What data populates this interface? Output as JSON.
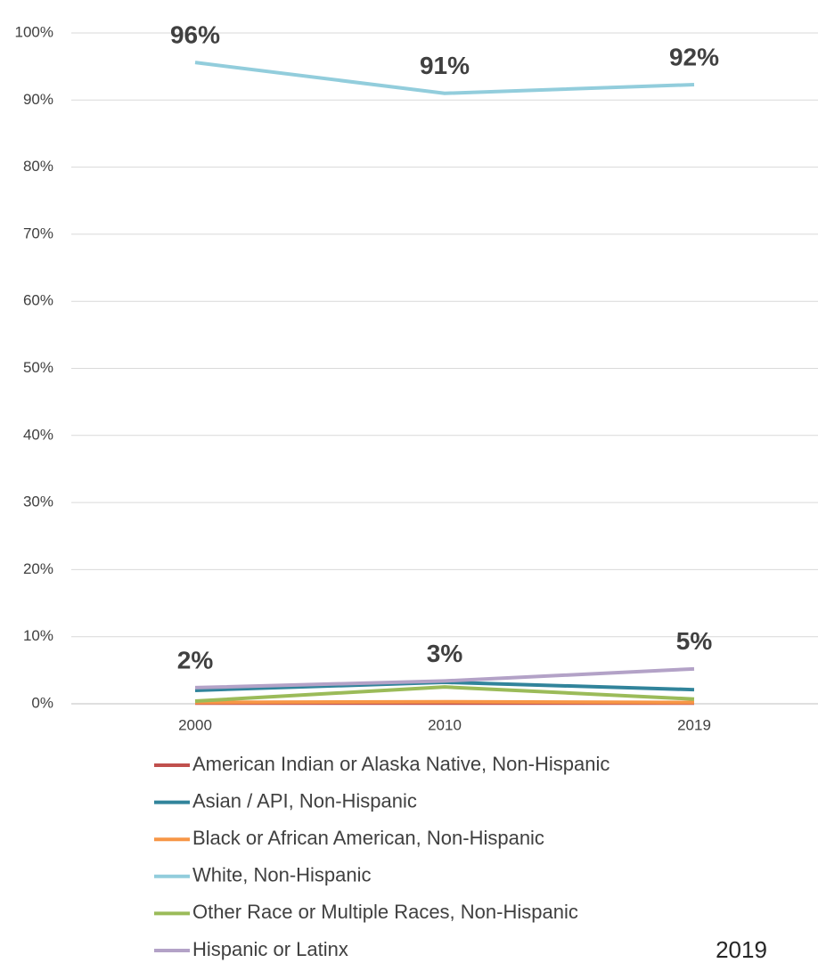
{
  "chart_data": {
    "type": "line",
    "x": [
      "2000",
      "2010",
      "2019"
    ],
    "ylim": [
      0,
      100
    ],
    "yticks": [
      {
        "value": 0,
        "label": "0%"
      },
      {
        "value": 10,
        "label": "10%"
      },
      {
        "value": 20,
        "label": "20%"
      },
      {
        "value": 30,
        "label": "30%"
      },
      {
        "value": 40,
        "label": "40%"
      },
      {
        "value": 50,
        "label": "50%"
      },
      {
        "value": 60,
        "label": "60%"
      },
      {
        "value": 70,
        "label": "70%"
      },
      {
        "value": 80,
        "label": "80%"
      },
      {
        "value": 90,
        "label": "90%"
      },
      {
        "value": 100,
        "label": "100%"
      }
    ],
    "grid": true,
    "legend": "bottom",
    "annotation": "2019",
    "series": [
      {
        "name": "American Indian or Alaska Native, Non-Hispanic",
        "color": "#c0504d",
        "values": [
          0.1,
          0.1,
          0.1
        ]
      },
      {
        "name": "Asian / API, Non-Hispanic",
        "color": "#31849b",
        "values": [
          2.0,
          3.2,
          2.1
        ]
      },
      {
        "name": "Black or African American, Non-Hispanic",
        "color": "#f79646",
        "values": [
          0.2,
          0.3,
          0.2
        ]
      },
      {
        "name": "White, Non-Hispanic",
        "color": "#92cddc",
        "values": [
          95.6,
          91.0,
          92.3
        ],
        "value_labels": [
          "96%",
          "91%",
          "92%"
        ]
      },
      {
        "name": "Other Race or Multiple Races, Non-Hispanic",
        "color": "#9bbb59",
        "values": [
          0.4,
          2.5,
          0.7
        ]
      },
      {
        "name": "Hispanic or Latinx",
        "color": "#b3a2c7",
        "values": [
          2.4,
          3.4,
          5.2
        ],
        "value_labels": [
          "2%",
          "3%",
          "5%"
        ]
      }
    ]
  }
}
